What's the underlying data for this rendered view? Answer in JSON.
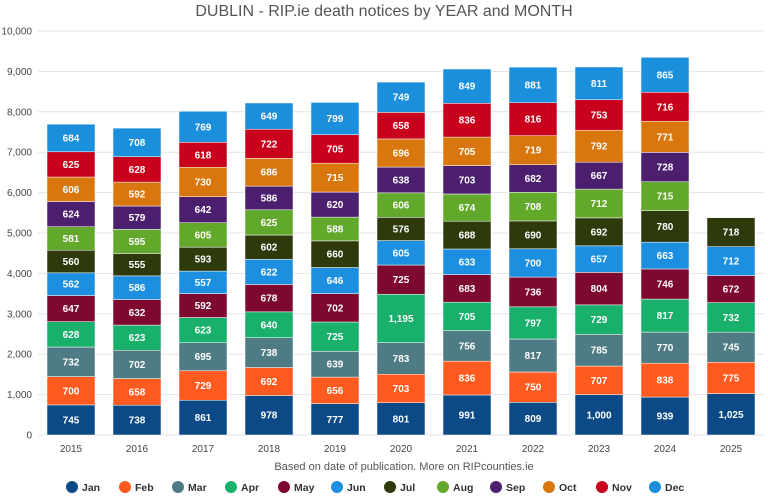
{
  "chart_data": {
    "type": "bar",
    "stacked": true,
    "title": "DUBLIN - RIP.ie death notices by YEAR and MONTH",
    "subtitle": "Based on date of publication. More on RIPcounties.ie",
    "xlabel": "",
    "ylabel": "",
    "ylim": [
      0,
      10000
    ],
    "yticks": [
      0,
      1000,
      2000,
      3000,
      4000,
      5000,
      6000,
      7000,
      8000,
      9000,
      10000
    ],
    "ytick_labels": [
      "0",
      "1,000",
      "2,000",
      "3,000",
      "4,000",
      "5,000",
      "6,000",
      "7,000",
      "8,000",
      "9,000",
      "10,000"
    ],
    "grid": true,
    "legend_position": "bottom",
    "categories": [
      "2015",
      "2016",
      "2017",
      "2018",
      "2019",
      "2020",
      "2021",
      "2022",
      "2023",
      "2024",
      "2025"
    ],
    "series": [
      {
        "name": "Jan",
        "color": "#0b4a86",
        "values": [
          745,
          738,
          861,
          978,
          777,
          801,
          991,
          809,
          1000,
          939,
          1025
        ]
      },
      {
        "name": "Feb",
        "color": "#ff5a1f",
        "values": [
          700,
          658,
          729,
          692,
          656,
          703,
          836,
          750,
          707,
          838,
          775
        ]
      },
      {
        "name": "Mar",
        "color": "#4f7c84",
        "values": [
          732,
          702,
          695,
          738,
          639,
          783,
          756,
          817,
          785,
          770,
          745
        ]
      },
      {
        "name": "Apr",
        "color": "#18b06a",
        "values": [
          628,
          623,
          623,
          640,
          725,
          1195,
          705,
          797,
          729,
          817,
          732
        ]
      },
      {
        "name": "May",
        "color": "#7d0a2e",
        "values": [
          647,
          632,
          592,
          678,
          702,
          725,
          683,
          736,
          804,
          746,
          672
        ]
      },
      {
        "name": "Jun",
        "color": "#1c8fe0",
        "values": [
          562,
          586,
          557,
          622,
          646,
          605,
          633,
          700,
          657,
          663,
          712
        ]
      },
      {
        "name": "Jul",
        "color": "#2e3a0c",
        "values": [
          560,
          555,
          593,
          602,
          660,
          576,
          688,
          690,
          692,
          780,
          718
        ]
      },
      {
        "name": "Aug",
        "color": "#62a82b",
        "values": [
          581,
          595,
          605,
          625,
          588,
          606,
          674,
          708,
          712,
          715,
          null
        ]
      },
      {
        "name": "Sep",
        "color": "#4b1f6e",
        "values": [
          624,
          579,
          642,
          586,
          620,
          638,
          703,
          682,
          667,
          728,
          null
        ]
      },
      {
        "name": "Oct",
        "color": "#d9770e",
        "values": [
          606,
          592,
          730,
          686,
          715,
          696,
          705,
          719,
          792,
          771,
          null
        ]
      },
      {
        "name": "Nov",
        "color": "#c8001b",
        "values": [
          625,
          628,
          618,
          722,
          705,
          658,
          836,
          816,
          753,
          716,
          null
        ]
      },
      {
        "name": "Dec",
        "color": "#1a8fdc",
        "values": [
          684,
          708,
          769,
          649,
          799,
          749,
          849,
          881,
          811,
          865,
          null
        ]
      }
    ]
  }
}
